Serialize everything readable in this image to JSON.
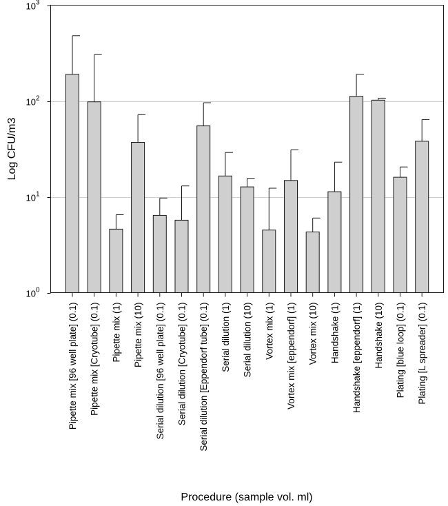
{
  "chart_data": {
    "type": "bar",
    "ylabel": "Log CFU/m3",
    "xlabel": "Procedure (sample vol. ml)",
    "yscale": "log",
    "ylim": [
      1,
      1000
    ],
    "yticks": [
      {
        "value": 1,
        "base": "10",
        "exp": "0"
      },
      {
        "value": 10,
        "base": "10",
        "exp": "1"
      },
      {
        "value": 100,
        "base": "10",
        "exp": "2"
      },
      {
        "value": 1000,
        "base": "10",
        "exp": "3"
      }
    ],
    "grid": "horizontal at 10 and 100",
    "categories": [
      "Pipette mix [96 well plate] (0.1)",
      "Pipette mix [Cryotube] (0.1)",
      "Pipette mix (1)",
      "Pipette mix (10)",
      "Serial dilution [96 well plate] (0.1)",
      "Serial dilution [Cryotube] (0.1)",
      "Serial dilution [Eppendorf tube] (0.1)",
      "Serial dilution (1)",
      "Serial dilution (10)",
      "Vortex mix (1)",
      "Vortex mix [eppendorf] (1)",
      "Vortex mix (10)",
      "Handshake (1)",
      "Handshake [eppendorf] (1)",
      "Handshake (10)",
      "Plating [blue loop] (0.1)",
      "Plating [L spreader] (0.1)"
    ],
    "values": [
      190,
      98,
      4.6,
      37,
      6.4,
      5.7,
      55,
      16.5,
      12.7,
      4.5,
      14.8,
      4.3,
      11.3,
      112,
      102,
      16,
      38
    ],
    "error_upper": [
      480,
      305,
      6.5,
      72,
      9.7,
      13,
      96,
      29,
      15.6,
      12.3,
      31,
      6,
      23,
      190,
      107,
      20.5,
      64
    ],
    "bar_color": "#cfcfcf",
    "edge_color": "#1a1a1a",
    "grid_color": "#cfcfcf"
  }
}
